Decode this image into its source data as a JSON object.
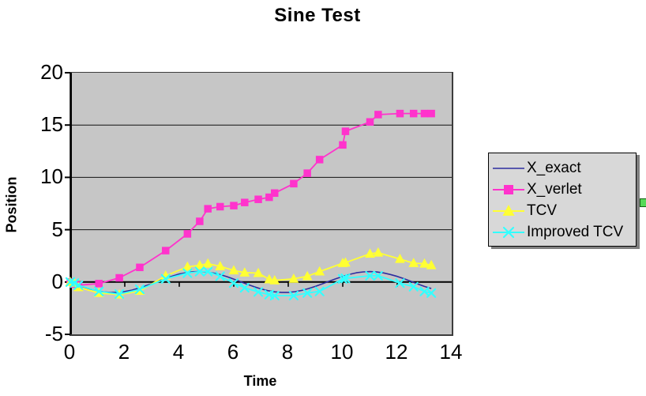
{
  "chart_data": {
    "type": "line",
    "title": "Sine Test",
    "xlabel": "Time",
    "ylabel": "Position",
    "xlim": [
      0,
      14
    ],
    "ylim": [
      -5,
      20
    ],
    "x_ticks": [
      0,
      2,
      4,
      6,
      8,
      10,
      12,
      14
    ],
    "y_ticks": [
      20,
      15,
      10,
      5,
      0,
      -5
    ],
    "gridlines_y": [
      15,
      10,
      5
    ],
    "x_axis_cross_y": 0,
    "x_axis_tick_marks": [
      2,
      4,
      6,
      8,
      10,
      12
    ],
    "grid": "horizontal",
    "legend_position": "right",
    "plot_bg": "#c6c6c6",
    "chart_bg": "#ffffff",
    "series": [
      {
        "name": "X_exact",
        "marker": "none",
        "color": "#2d2da0",
        "line_width": 1.6,
        "x": [
          0,
          0.25,
          0.5,
          0.75,
          1,
          1.25,
          1.5,
          1.75,
          2,
          2.25,
          2.5,
          2.75,
          3,
          3.25,
          3.5,
          3.75,
          4,
          4.25,
          4.5,
          4.75,
          5,
          5.25,
          5.5,
          5.75,
          6,
          6.25,
          6.5,
          6.75,
          7,
          7.25,
          7.5,
          7.75,
          8,
          8.25,
          8.5,
          8.75,
          9,
          9.25,
          9.5,
          9.75,
          10,
          10.25,
          10.5,
          10.75,
          11,
          11.25,
          11.5,
          11.75,
          12,
          12.25,
          12.5,
          12.75,
          13,
          13.25
        ],
        "y": [
          0,
          -0.25,
          -0.48,
          -0.68,
          -0.84,
          -0.95,
          -1.0,
          -0.98,
          -0.91,
          -0.78,
          -0.6,
          -0.38,
          -0.14,
          0.11,
          0.35,
          0.57,
          0.76,
          0.89,
          0.98,
          1.0,
          0.96,
          0.86,
          0.71,
          0.51,
          0.28,
          0.03,
          -0.22,
          -0.45,
          -0.66,
          -0.82,
          -0.94,
          -0.99,
          -0.99,
          -0.92,
          -0.8,
          -0.62,
          -0.41,
          -0.17,
          0.08,
          0.32,
          0.54,
          0.73,
          0.88,
          0.97,
          1.0,
          0.96,
          0.87,
          0.72,
          0.54,
          0.32,
          0.07,
          -0.19,
          -0.42,
          -0.62
        ]
      },
      {
        "name": "X_verlet",
        "marker": "square",
        "color": "#ff33cc",
        "line_width": 1.8,
        "x": [
          0,
          0.15,
          0.3,
          1.05,
          1.8,
          2.55,
          3.5,
          4.3,
          4.75,
          5.05,
          5.5,
          6.0,
          6.4,
          6.9,
          7.3,
          7.5,
          8.2,
          8.7,
          9.15,
          10.0,
          10.1,
          11.0,
          11.3,
          12.1,
          12.6,
          13.0,
          13.25
        ],
        "y": [
          0,
          -0.2,
          -0.3,
          -0.15,
          0.4,
          1.4,
          3.0,
          4.6,
          5.8,
          7.0,
          7.2,
          7.3,
          7.6,
          7.9,
          8.1,
          8.5,
          9.4,
          10.4,
          11.7,
          13.1,
          14.4,
          15.3,
          16.0,
          16.1,
          16.1,
          16.1,
          16.1
        ]
      },
      {
        "name": "TCV",
        "marker": "triangle",
        "color": "#ffff33",
        "line_width": 1.8,
        "x": [
          0,
          0.15,
          0.3,
          1.05,
          1.8,
          2.55,
          3.5,
          4.3,
          4.75,
          5.05,
          5.5,
          6.0,
          6.4,
          6.9,
          7.3,
          7.5,
          8.2,
          8.7,
          9.15,
          10.0,
          10.1,
          11.0,
          11.3,
          12.1,
          12.6,
          13.0,
          13.25
        ],
        "y": [
          0,
          -0.1,
          -0.5,
          -1.05,
          -1.2,
          -0.85,
          0.6,
          1.45,
          1.6,
          1.75,
          1.5,
          1.1,
          0.9,
          0.85,
          0.25,
          0.15,
          0.3,
          0.55,
          1.0,
          1.8,
          1.85,
          2.7,
          2.8,
          2.2,
          1.8,
          1.75,
          1.6
        ]
      },
      {
        "name": "Improved TCV",
        "marker": "x",
        "color": "#33ffff",
        "line_width": 1.8,
        "x": [
          0,
          0.15,
          0.3,
          1.05,
          1.8,
          2.55,
          3.5,
          4.3,
          4.75,
          5.05,
          5.5,
          6.0,
          6.4,
          6.9,
          7.3,
          7.5,
          8.2,
          8.7,
          9.15,
          10.0,
          10.1,
          11.0,
          11.3,
          12.1,
          12.6,
          13.0,
          13.25
        ],
        "y": [
          0,
          -0.1,
          -0.3,
          -0.9,
          -1.15,
          -0.7,
          0.3,
          0.85,
          1.0,
          1.0,
          0.55,
          -0.1,
          -0.55,
          -0.95,
          -1.2,
          -1.3,
          -1.3,
          -1.05,
          -0.9,
          0.3,
          0.35,
          0.6,
          0.6,
          -0.1,
          -0.45,
          -0.9,
          -1.05
        ]
      }
    ]
  },
  "colors": {
    "plot_background": "#c6c6c6",
    "legend_background": "#d8d8d8",
    "gridline": "#111111",
    "axis": "#000000",
    "selection_handle": "#57d957"
  }
}
